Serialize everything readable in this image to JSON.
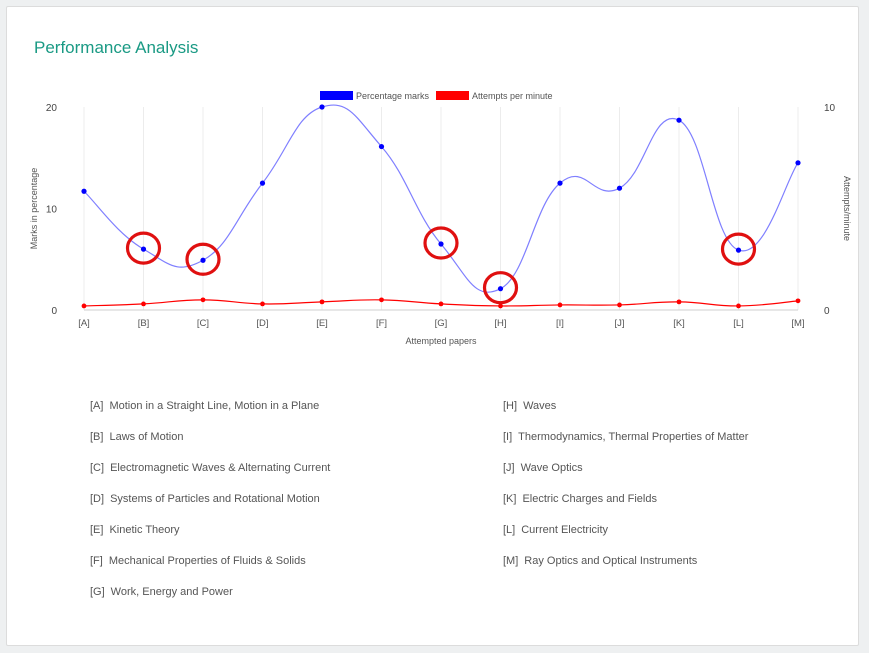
{
  "card": {
    "title": "Performance Analysis"
  },
  "colors": {
    "series1": "#0000ff",
    "series1_line": "#7f7fff",
    "series2": "#ff0000",
    "highlight_circle": "#e01010",
    "title": "#1a9a84"
  },
  "chart_data": {
    "type": "line",
    "categories": [
      "[A]",
      "[B]",
      "[C]",
      "[D]",
      "[E]",
      "[F]",
      "[G]",
      "[H]",
      "[I]",
      "[J]",
      "[K]",
      "[L]",
      "[M]"
    ],
    "series": [
      {
        "name": "Percentage marks",
        "axis": "left",
        "values": [
          11.7,
          6.0,
          4.9,
          12.5,
          20.0,
          16.1,
          6.5,
          2.1,
          12.5,
          12.0,
          18.7,
          5.9,
          14.5
        ]
      },
      {
        "name": "Attempts per minute",
        "axis": "right",
        "values": [
          0.2,
          0.3,
          0.5,
          0.3,
          0.4,
          0.5,
          0.3,
          0.2,
          0.25,
          0.25,
          0.4,
          0.2,
          0.45
        ]
      }
    ],
    "xlabel": "Attempted papers",
    "ylabel": "Marks in percentage",
    "y2label": "Attempts/minute",
    "ylim": [
      0,
      20
    ],
    "y2lim": [
      0,
      10
    ],
    "yticks": [
      "0",
      "10",
      "20"
    ],
    "y2ticks": [
      "0",
      "10"
    ],
    "legend_position": "top",
    "grid": "vertical",
    "highlighted_categories": [
      "[B]",
      "[C]",
      "[G]",
      "[H]",
      "[L]"
    ]
  },
  "legend_list": {
    "left": [
      {
        "key": "[A]",
        "label": "Motion in a Straight Line, Motion in a Plane"
      },
      {
        "key": "[B]",
        "label": "Laws of Motion"
      },
      {
        "key": "[C]",
        "label": "Electromagnetic Waves & Alternating Current"
      },
      {
        "key": "[D]",
        "label": "Systems of Particles and Rotational Motion"
      },
      {
        "key": "[E]",
        "label": "Kinetic Theory"
      },
      {
        "key": "[F]",
        "label": "Mechanical Properties of Fluids & Solids"
      },
      {
        "key": "[G]",
        "label": "Work, Energy and Power"
      }
    ],
    "right": [
      {
        "key": "[H]",
        "label": "Waves"
      },
      {
        "key": "[I]",
        "label": "Thermodynamics, Thermal Properties of Matter"
      },
      {
        "key": "[J]",
        "label": "Wave Optics"
      },
      {
        "key": "[K]",
        "label": "Electric Charges and Fields"
      },
      {
        "key": "[L]",
        "label": "Current Electricity"
      },
      {
        "key": "[M]",
        "label": "Ray Optics and Optical Instruments"
      }
    ]
  }
}
